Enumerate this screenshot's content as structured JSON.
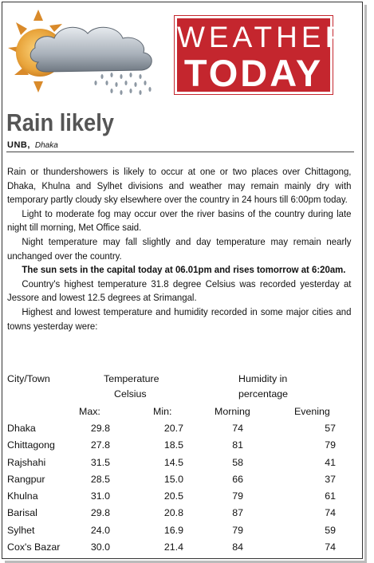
{
  "banner": {
    "line1": "WEATHER",
    "line2": "TODAY"
  },
  "article": {
    "headline": "Rain likely",
    "agency": "UNB,",
    "dateline": "Dhaka",
    "paragraphs": [
      "Rain or thundershowers is likely to occur at one or two places over Chittagong, Dhaka, Khulna and Sylhet divisions and weather may remain mainly dry with temporary partly cloudy sky elsewhere over the country in 24 hours till 6:00pm today.",
      "Light to moderate fog may occur over the river basins of the country during late night till morning, Met Office said.",
      "Night temperature may fall slightly and day temperature may remain nearly unchanged over the country.",
      "The sun sets in the capital today at 06.01pm and rises tomorrow at 6:20am.",
      "Country's highest temperature 31.8 degree Celsius was recorded yesterday at Jessore and lowest 12.5 degrees at Srimangal.",
      "Highest and lowest temperature and humidity recorded in some major cities and towns yesterday were:"
    ]
  },
  "table": {
    "city_header": "City/Town",
    "temp_header_1": "Temperature",
    "temp_header_2": "Celsius",
    "hum_header_1": "Humidity in",
    "hum_header_2": "percentage",
    "max_label": "Max:",
    "min_label": "Min:",
    "morning_label": "Morning",
    "evening_label": "Evening",
    "rows": [
      {
        "city": "Dhaka",
        "max": "29.8",
        "min": "20.7",
        "morning": "74",
        "evening": "57"
      },
      {
        "city": "Chittagong",
        "max": "27.8",
        "min": "18.5",
        "morning": "81",
        "evening": "79"
      },
      {
        "city": "Rajshahi",
        "max": "31.5",
        "min": "14.5",
        "morning": "58",
        "evening": "41"
      },
      {
        "city": "Rangpur",
        "max": "28.5",
        "min": "15.0",
        "morning": "66",
        "evening": "37"
      },
      {
        "city": "Khulna",
        "max": "31.0",
        "min": "20.5",
        "morning": "79",
        "evening": "61"
      },
      {
        "city": "Barisal",
        "max": "29.8",
        "min": "20.8",
        "morning": "87",
        "evening": "74"
      },
      {
        "city": "Sylhet",
        "max": "24.0",
        "min": "16.9",
        "morning": "79",
        "evening": "59"
      },
      {
        "city": "Cox's Bazar",
        "max": "30.0",
        "min": "21.4",
        "morning": "84",
        "evening": "74"
      }
    ]
  },
  "colors": {
    "banner_red": "#c4262e",
    "headline_gray": "#555555",
    "sun_orange": "#e8a33a",
    "cloud_gray": "#9aa3ad"
  },
  "icons": {
    "art": "sun-cloud-rain-icon"
  }
}
